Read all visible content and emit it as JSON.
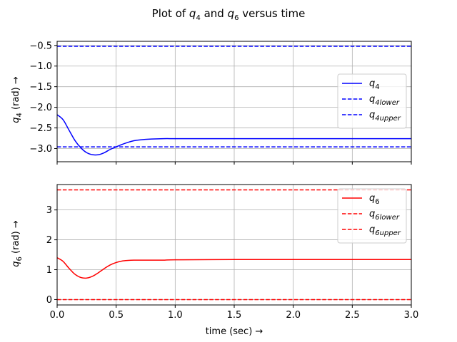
{
  "chart_data": {
    "title": "Plot of q_4 and q_6 versus time",
    "xlabel": "time (sec) →",
    "xlim": [
      0,
      3
    ],
    "xticks": [
      0,
      0.5,
      1,
      1.5,
      2,
      2.5,
      3
    ],
    "xtick_labels": [
      "0.0",
      "0.5",
      "1.0",
      "1.5",
      "2.0",
      "2.5",
      "3.0"
    ],
    "subplots": [
      {
        "type": "line",
        "ylabel": "q4 (rad) →",
        "ylim": [
          -3.32,
          -0.4
        ],
        "yticks": [
          -0.5,
          -1.0,
          -1.5,
          -2.0,
          -2.5,
          -3.0
        ],
        "ytick_labels": [
          "−0.5",
          "−1.0",
          "−1.5",
          "−2.0",
          "−2.5",
          "−3.0"
        ],
        "grid": true,
        "legend_position": "center-right",
        "series": [
          {
            "name": "q4",
            "color": "#0000ff",
            "style": "solid",
            "x": [
              0,
              0.05,
              0.1,
              0.15,
              0.2,
              0.25,
              0.3,
              0.35,
              0.4,
              0.45,
              0.5,
              0.55,
              0.6,
              0.65,
              0.7,
              0.8,
              0.9,
              1.0,
              1.2,
              1.5,
              2.0,
              2.5,
              3.0
            ],
            "y": [
              -2.18,
              -2.3,
              -2.55,
              -2.8,
              -2.98,
              -3.1,
              -3.15,
              -3.15,
              -3.1,
              -3.02,
              -2.96,
              -2.9,
              -2.85,
              -2.81,
              -2.79,
              -2.77,
              -2.76,
              -2.76,
              -2.76,
              -2.76,
              -2.76,
              -2.76,
              -2.76
            ]
          },
          {
            "name": "q4lower",
            "color": "#0000ff",
            "style": "dashed",
            "x": [
              0,
              3
            ],
            "y": [
              -2.96,
              -2.96
            ]
          },
          {
            "name": "q4upper",
            "color": "#0000ff",
            "style": "dashed",
            "x": [
              0,
              3
            ],
            "y": [
              -0.52,
              -0.52
            ]
          }
        ],
        "legend": [
          {
            "main": "q",
            "sub": "4"
          },
          {
            "main": "q",
            "sub": "4lower"
          },
          {
            "main": "q",
            "sub": "4upper"
          }
        ]
      },
      {
        "type": "line",
        "ylabel": "q6 (rad) →",
        "ylim": [
          -0.18,
          3.85
        ],
        "yticks": [
          0,
          1,
          2,
          3
        ],
        "ytick_labels": [
          "0",
          "1",
          "2",
          "3"
        ],
        "grid": true,
        "legend_position": "top-right",
        "series": [
          {
            "name": "q6",
            "color": "#ff0000",
            "style": "solid",
            "x": [
              0,
              0.05,
              0.1,
              0.15,
              0.2,
              0.25,
              0.3,
              0.35,
              0.4,
              0.45,
              0.5,
              0.55,
              0.6,
              0.65,
              0.7,
              0.8,
              0.9,
              1.0,
              1.5,
              2.0,
              2.5,
              3.0
            ],
            "y": [
              1.4,
              1.28,
              1.05,
              0.85,
              0.74,
              0.72,
              0.78,
              0.9,
              1.04,
              1.16,
              1.24,
              1.29,
              1.31,
              1.32,
              1.32,
              1.32,
              1.32,
              1.33,
              1.34,
              1.34,
              1.34,
              1.34
            ]
          },
          {
            "name": "q6lower",
            "color": "#ff0000",
            "style": "dashed",
            "x": [
              0,
              3
            ],
            "y": [
              0,
              0
            ]
          },
          {
            "name": "q6upper",
            "color": "#ff0000",
            "style": "dashed",
            "x": [
              0,
              3
            ],
            "y": [
              3.67,
              3.67
            ]
          }
        ],
        "legend": [
          {
            "main": "q",
            "sub": "6"
          },
          {
            "main": "q",
            "sub": "6lower"
          },
          {
            "main": "q",
            "sub": "6upper"
          }
        ]
      }
    ]
  }
}
